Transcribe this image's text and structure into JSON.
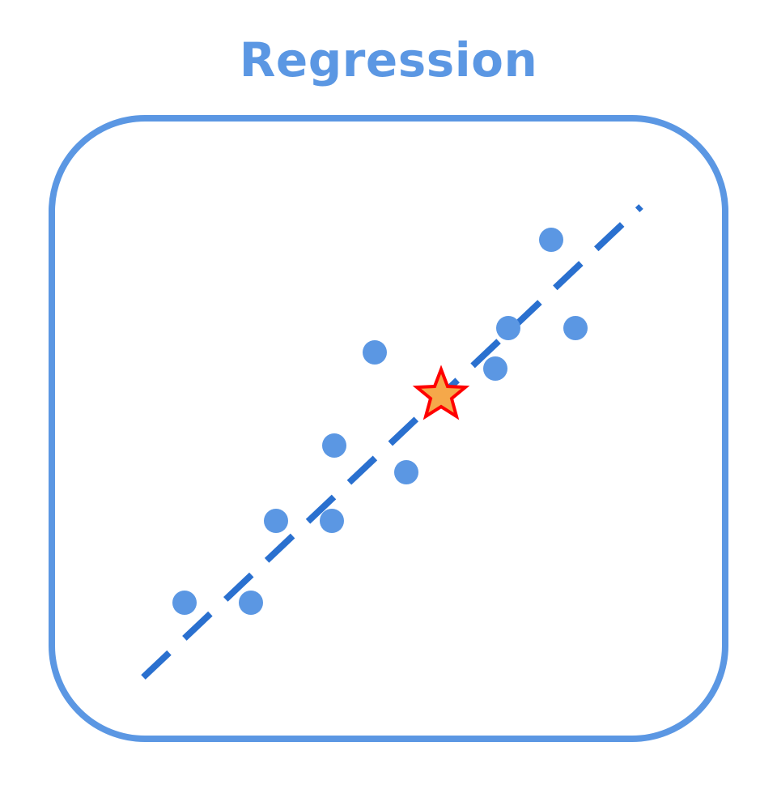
{
  "title": "Regression",
  "colors": {
    "accent": "#5b97e3",
    "line": "#2a70cf",
    "point": "#5b97e3",
    "star_fill": "#f5a84a",
    "star_stroke": "#ff0000",
    "background": "#ffffff"
  },
  "icons": {
    "data_point": "circle",
    "prediction_marker": "star"
  },
  "regression": {
    "line_style": "dashed"
  }
}
